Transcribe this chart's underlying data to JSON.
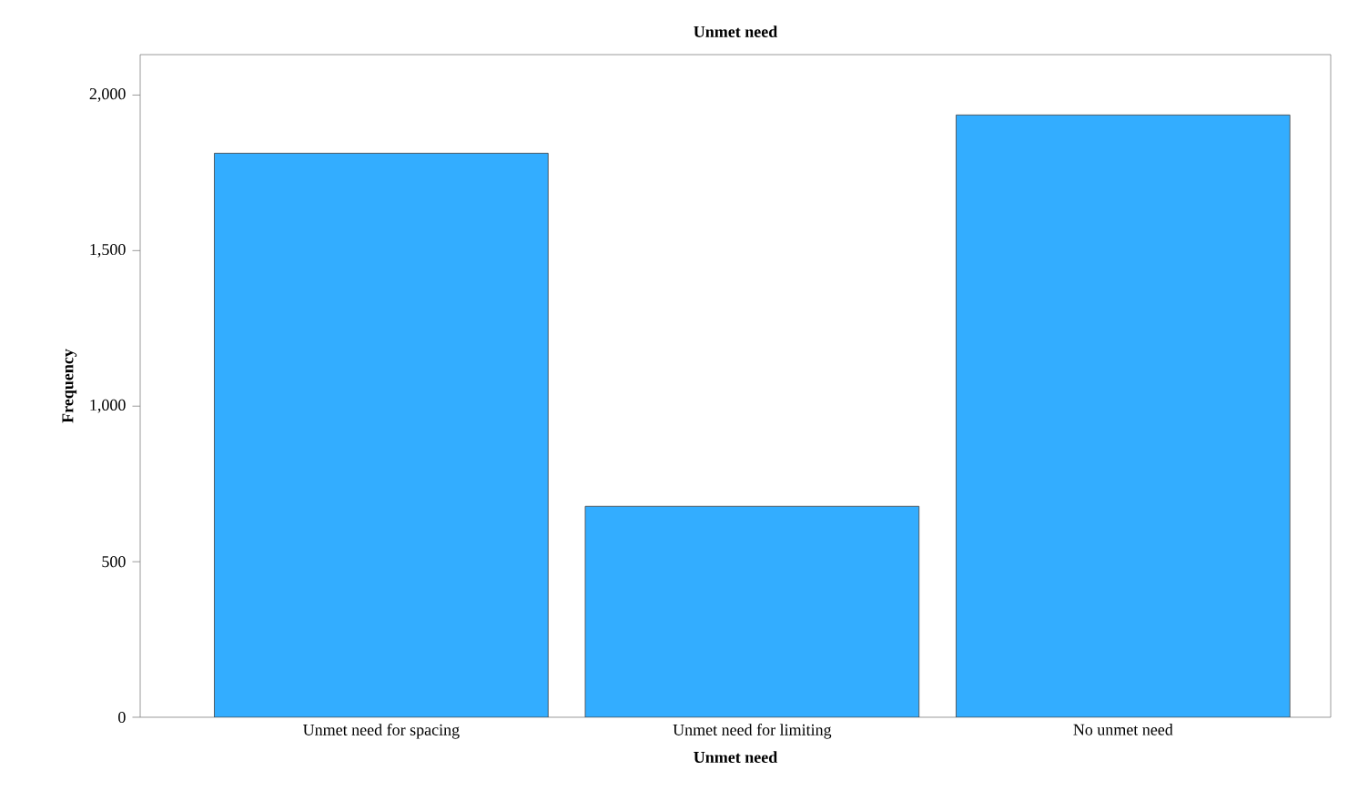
{
  "chart_data": {
    "type": "bar",
    "title": "Unmet need",
    "xlabel": "Unmet need",
    "ylabel": "Frequency",
    "categories": [
      "Unmet need for spacing",
      "Unmet need for limiting",
      "No unmet need"
    ],
    "values": [
      1813,
      678,
      1936
    ],
    "color": "#33adff",
    "ylim": [
      0,
      2130
    ],
    "yticks": [
      0,
      500,
      {
        "value": 1000,
        "label": "1,000"
      },
      {
        "value": 1500,
        "label": "1,500"
      },
      {
        "value": 2000,
        "label": "2,000"
      }
    ]
  }
}
